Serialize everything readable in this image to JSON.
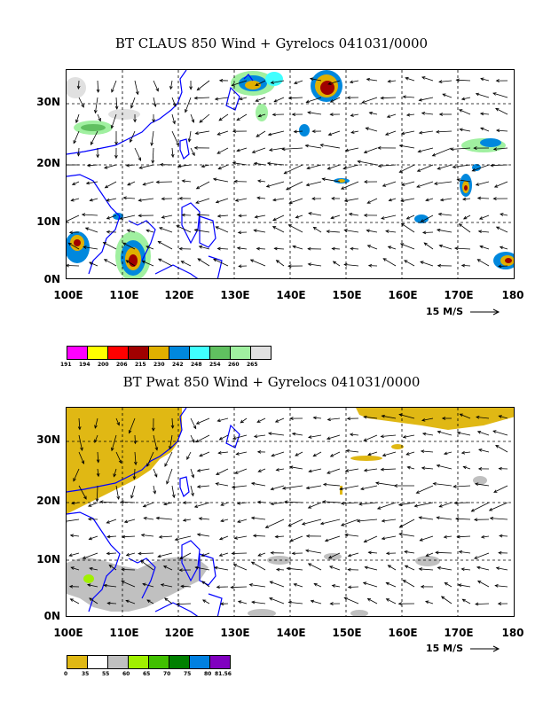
{
  "panels": [
    {
      "title": "BT CLAUS 850 Wind + Gyrelocs 041031/0000",
      "x_labels": [
        "100E",
        "110E",
        "120E",
        "130E",
        "140E",
        "150E",
        "160E",
        "170E",
        "180"
      ],
      "y_labels": [
        "30N",
        "20N",
        "10N",
        "0N"
      ],
      "ref_vector": "15 M/S",
      "colorbar": {
        "colors": [
          "#ff00ff",
          "#ffff00",
          "#ff0000",
          "#a00000",
          "#e0b000",
          "#0088dd",
          "#40ffff",
          "#60c060",
          "#a0f0a0",
          "#e0e0e0"
        ],
        "labels": [
          "191",
          "194",
          "200",
          "206",
          "215",
          "230",
          "242",
          "248",
          "254",
          "260",
          "265"
        ]
      }
    },
    {
      "title": "BT Pwat 850 Wind + Gyrelocs 041031/0000",
      "x_labels": [
        "100E",
        "110E",
        "120E",
        "130E",
        "140E",
        "150E",
        "160E",
        "170E",
        "180"
      ],
      "y_labels": [
        "30N",
        "20N",
        "10N",
        "0N"
      ],
      "ref_vector": "15 M/S",
      "colorbar": {
        "colors": [
          "#e0b814",
          "#ffffff",
          "#c0c0c0",
          "#a0f000",
          "#40c000",
          "#008000",
          "#0080e0",
          "#8000c0"
        ],
        "labels": [
          "0",
          "35",
          "55",
          "60",
          "65",
          "70",
          "75",
          "80",
          "81.56"
        ]
      }
    }
  ],
  "colors": {
    "coastline": "#0000ff",
    "gridline": "#000000",
    "vector": "#000000"
  }
}
